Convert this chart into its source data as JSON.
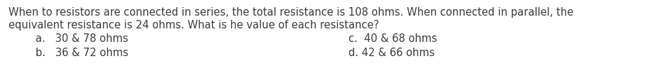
{
  "background_color": "#ffffff",
  "text_color": "#404040",
  "question_line1": "When to resistors are connected in series, the total resistance is 108 ohms. When connected in parallel, the",
  "question_line2": "equivalent resistance is 24 ohms. What is he value of each resistance?",
  "option_a": "a.   30 & 78 ohms",
  "option_b": "b.   36 & 72 ohms",
  "option_c": "c.  40 & 68 ohms",
  "option_d": "d. 42 & 66 ohms",
  "font_size_question": 10.5,
  "font_size_options": 10.5,
  "fig_width": 9.29,
  "fig_height": 1.07,
  "dpi": 100
}
